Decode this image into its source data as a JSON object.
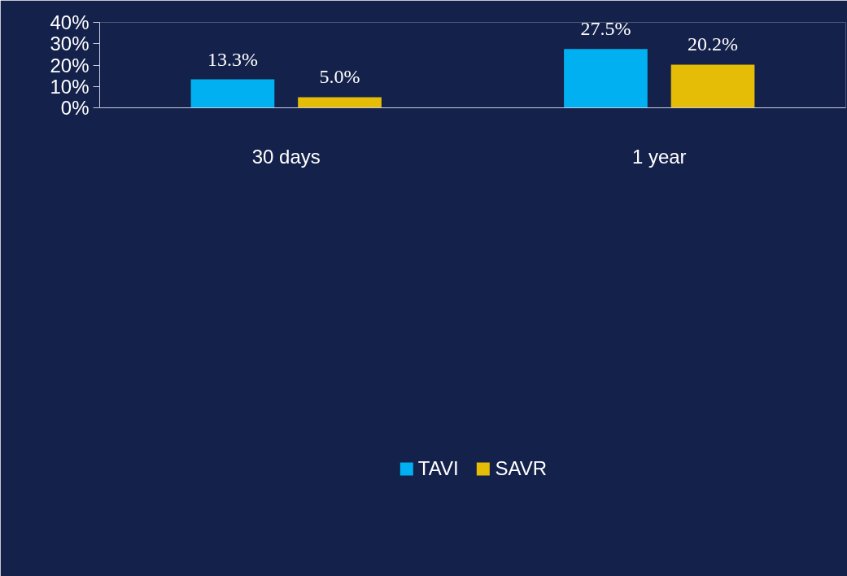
{
  "chart_data": {
    "type": "bar",
    "categories": [
      "30 days",
      "1 year"
    ],
    "series": [
      {
        "name": "TAVI",
        "color": "#00b0f0",
        "values": [
          13.3,
          27.5
        ],
        "value_labels": [
          "13.3%",
          "27.5%"
        ]
      },
      {
        "name": "SAVR",
        "color": "#e5bc06",
        "values": [
          5.0,
          20.2
        ],
        "value_labels": [
          "5.0%",
          "20.2%"
        ]
      }
    ],
    "ylim": [
      0,
      40
    ],
    "yticks": [
      {
        "value": 0,
        "label": "0%"
      },
      {
        "value": 10,
        "label": "10%"
      },
      {
        "value": 20,
        "label": "20%"
      },
      {
        "value": 30,
        "label": "30%"
      },
      {
        "value": 40,
        "label": "40%"
      }
    ],
    "grid": false,
    "legend": "bottom"
  }
}
